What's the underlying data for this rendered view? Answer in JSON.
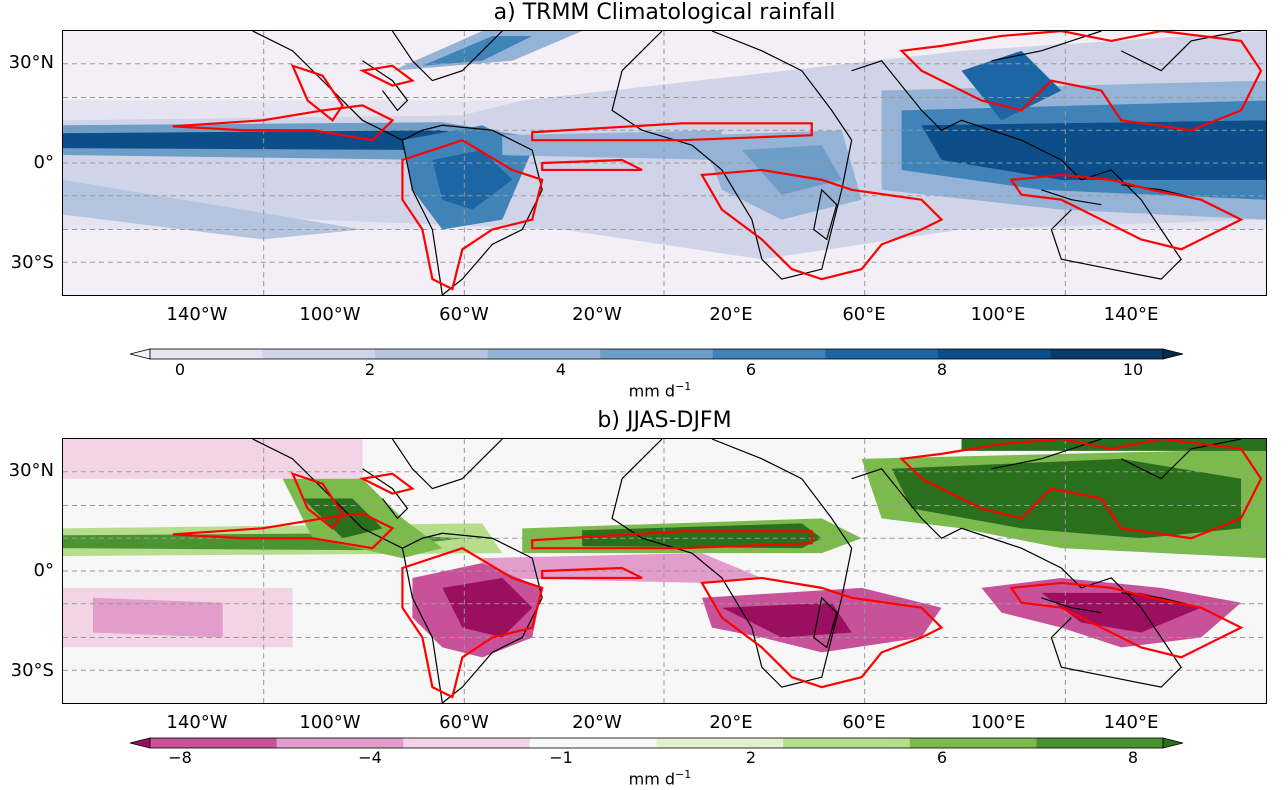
{
  "panels": [
    {
      "id": "a",
      "title": "a) TRMM Climatological rainfall",
      "colorbar": {
        "ticks": [
          "0",
          "2",
          "4",
          "6",
          "8",
          "10"
        ],
        "unit_base": "mm d",
        "unit_exp": "−1",
        "colors": [
          "#f4eef6",
          "#e6e4f0",
          "#d0d4e8",
          "#b5c4df",
          "#95b3d6",
          "#6e9dc8",
          "#3f83b9",
          "#1d66a5",
          "#0b4e8a",
          "#0a3a68",
          "#08294c"
        ]
      }
    },
    {
      "id": "b",
      "title": "b) JJAS-DJFM",
      "colorbar": {
        "ticks": [
          "−8",
          "−4",
          "−1",
          "2",
          "6",
          "8"
        ],
        "unit_base": "mm d",
        "unit_exp": "−1",
        "colors": [
          "#9c0e60",
          "#c8529a",
          "#e39dcc",
          "#f3d4e7",
          "#f7f7f7",
          "#e2f0cf",
          "#b6dd8c",
          "#7dba4d",
          "#4b9231",
          "#2a6f1c"
        ]
      }
    }
  ],
  "axes": {
    "lat_labels": [
      "30°N",
      "0°",
      "30°S"
    ],
    "lon_labels": [
      "140°W",
      "100°W",
      "60°W",
      "20°W",
      "20°E",
      "60°E",
      "100°E",
      "140°E"
    ]
  },
  "colors": {
    "contour": "#ff0000",
    "coastline": "#000000",
    "gridline": "#999999"
  }
}
